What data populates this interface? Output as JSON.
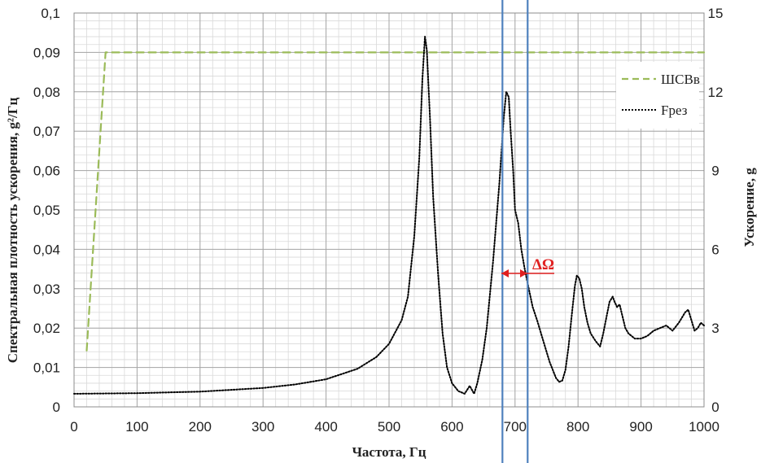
{
  "chart_data": {
    "type": "line",
    "title": "",
    "xlabel": "Частота, Гц",
    "ylabel": "Спектральная плотность ускорения, g²/Гц",
    "y2label": "Ускорение, g",
    "xlim": [
      0,
      1000
    ],
    "ylim": [
      0,
      0.1
    ],
    "y2lim": [
      0,
      15
    ],
    "x_ticks": [
      "0",
      "100",
      "200",
      "300",
      "400",
      "500",
      "600",
      "700",
      "800",
      "900",
      "1000"
    ],
    "y_ticks": [
      "0",
      "0,01",
      "0,02",
      "0,03",
      "0,04",
      "0,05",
      "0,06",
      "0,07",
      "0,08",
      "0,09",
      "0,1"
    ],
    "y2_ticks": [
      "0",
      "3",
      "6",
      "9",
      "12",
      "15"
    ],
    "grid": true,
    "legend_position": "top-right",
    "series": [
      {
        "name": "ШСВв",
        "axis": "left",
        "color": "#9bbb59",
        "style": "dashed",
        "x": [
          20,
          50,
          1000
        ],
        "y": [
          0.0143,
          0.09,
          0.09
        ]
      },
      {
        "name": "Fрез",
        "axis": "right",
        "color": "#000000",
        "style": "dotted",
        "x": [
          0,
          100,
          200,
          300,
          350,
          400,
          450,
          480,
          500,
          520,
          530,
          540,
          548,
          553,
          557,
          560,
          565,
          570,
          578,
          585,
          592,
          600,
          610,
          620,
          628,
          635,
          640,
          648,
          655,
          665,
          675,
          682,
          686,
          690,
          693,
          697,
          700,
          705,
          710,
          715,
          720,
          728,
          735,
          745,
          755,
          765,
          770,
          775,
          780,
          785,
          790,
          795,
          798,
          802,
          806,
          810,
          815,
          820,
          828,
          835,
          840,
          845,
          850,
          855,
          858,
          862,
          866,
          870,
          875,
          880,
          890,
          900,
          910,
          920,
          930,
          940,
          950,
          960,
          965,
          970,
          975,
          980,
          985,
          990,
          995,
          1000
        ],
        "y": [
          0.5,
          0.52,
          0.58,
          0.72,
          0.85,
          1.05,
          1.45,
          1.9,
          2.4,
          3.3,
          4.2,
          6.5,
          9.5,
          12.5,
          14.1,
          13.6,
          11.0,
          8.0,
          5.0,
          2.8,
          1.5,
          0.9,
          0.6,
          0.5,
          0.8,
          0.5,
          0.9,
          1.8,
          3.0,
          5.5,
          8.5,
          11.0,
          12.0,
          11.8,
          10.5,
          9.0,
          7.5,
          7.0,
          6.0,
          5.3,
          4.7,
          3.8,
          3.3,
          2.5,
          1.7,
          1.1,
          0.95,
          1.0,
          1.4,
          2.3,
          3.5,
          4.6,
          5.0,
          4.9,
          4.5,
          3.8,
          3.2,
          2.8,
          2.5,
          2.3,
          2.8,
          3.4,
          4.0,
          4.2,
          4.0,
          3.8,
          3.9,
          3.5,
          3.0,
          2.8,
          2.6,
          2.6,
          2.7,
          2.9,
          3.0,
          3.1,
          2.9,
          3.2,
          3.4,
          3.6,
          3.7,
          3.3,
          2.9,
          3.0,
          3.2,
          3.1
        ]
      }
    ],
    "markers": [
      {
        "type": "vline",
        "x": 680,
        "color": "#4f81bd"
      },
      {
        "type": "vline",
        "x": 720,
        "color": "#4f81bd"
      }
    ],
    "annotation": {
      "text": "ΔΩ",
      "color": "#e02020"
    }
  }
}
